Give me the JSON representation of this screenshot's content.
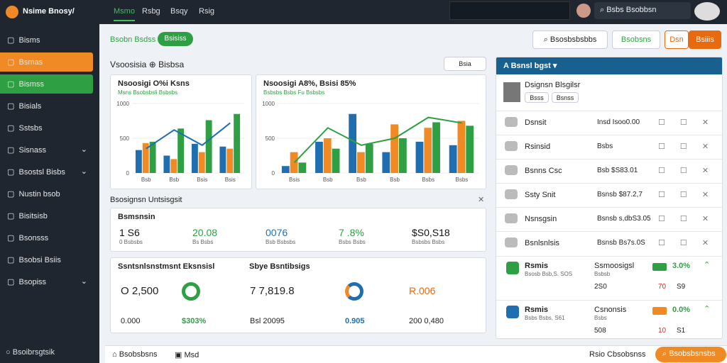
{
  "sidebar": {
    "brand": "Nsime Bnosy/",
    "items": [
      "Bisms",
      "Bsmas",
      "Bismss",
      "Bisials",
      "Sstsbs",
      "Sisnass",
      "Bsostsl Bisbs",
      "Nustin bsob",
      "Bisitsisb",
      "Bsonsss",
      "Bsobsi Bsiis",
      "Bsopiss"
    ],
    "footer": "Bsoibrsgtsik"
  },
  "topnav": {
    "tabs": [
      "Msmo",
      "Rsbg",
      "Bsqy",
      "Rsig"
    ],
    "search": "Bsbs Bsobbsn"
  },
  "toolbar": {
    "breadcrumb": "Bsobn Bsdss",
    "tag": "Bsisiss",
    "search": "Bsosbsbsbbs",
    "buttons": [
      "Bsobsns",
      "Dsn",
      "Bsiiis"
    ]
  },
  "page_title": "Vsoosisia",
  "page_subtitle": "Bisbsa",
  "filter": "Bsia",
  "charts": [
    {
      "title": "Nsoosigi O%i Ksns",
      "subtitle": "Msns Bsobsbsli Bsbsbs",
      "categories": [
        "Bsb",
        "Bsb",
        "Bsis",
        "Bsis"
      ],
      "ylim": [
        0,
        1000
      ],
      "yticks": [
        0,
        500,
        1000
      ],
      "series": [
        {
          "color": "#1f6fb0",
          "values": [
            330,
            250,
            420,
            380
          ]
        },
        {
          "color": "#f08a24",
          "values": [
            430,
            200,
            300,
            350
          ]
        },
        {
          "color": "#2ea043",
          "values": [
            450,
            640,
            760,
            850
          ]
        }
      ],
      "line": {
        "color": "#1f6fb0",
        "values": [
          350,
          620,
          400,
          720
        ]
      }
    },
    {
      "title": "Nsoosigi A8%, Bsisi 85%",
      "subtitle": "Bsbsbs Bsbs Fu Bsbsbs",
      "categories": [
        "Bsis",
        "Bsb",
        "Bsb",
        "Bsb",
        "Bsbs",
        "Bsbs"
      ],
      "ylim": [
        0,
        1000
      ],
      "yticks": [
        0,
        500,
        1000
      ],
      "series": [
        {
          "color": "#1f6fb0",
          "values": [
            100,
            450,
            850,
            300,
            450,
            400
          ]
        },
        {
          "color": "#f08a24",
          "values": [
            300,
            500,
            300,
            700,
            650,
            750
          ]
        },
        {
          "color": "#2ea043",
          "values": [
            150,
            350,
            420,
            500,
            730,
            680
          ]
        }
      ],
      "line": {
        "color": "#2ea043",
        "values": [
          150,
          650,
          400,
          500,
          800,
          720
        ]
      }
    }
  ],
  "section_title": "Bsosignsn Untsisgsit",
  "summary": {
    "title": "Bsmsnsin",
    "stats": [
      {
        "value": "1 S6",
        "label": "0 Bsbsbs"
      },
      {
        "value": "20.08",
        "label": "Bs Bsbs"
      },
      {
        "value": "0076",
        "label": "Bsb Bsbsbs"
      },
      {
        "value": "7 .8%",
        "label": "Bsbs Bsbs"
      },
      {
        "value": "$S0,S18",
        "label": "Bsbsbs Bsbs"
      }
    ]
  },
  "detail": {
    "left_title": "Ssntsnlsnstmsnt Eksnsisl",
    "right_title": "Sbye Bsntibsigs",
    "row1": [
      "Ο 2,500",
      "7 7,819.8",
      "R.006"
    ],
    "row2": [
      "0.000",
      "$303%",
      "Bsl 20095",
      "0.905",
      "200 0,480"
    ]
  },
  "panel": {
    "title": "A Bsnsl bgst",
    "profile": {
      "name": "Dsignsn Blsgilsr",
      "tags": [
        "Bsss",
        "Bsnss"
      ]
    },
    "items": [
      {
        "name": "Dsnsit",
        "value": "Insd Isoo0.00"
      },
      {
        "name": "Rsinsid",
        "value": "Bsbs"
      },
      {
        "name": "Bsnns Csc",
        "value": "Bsb $S83.01"
      },
      {
        "name": "Ssty Snit",
        "value": "Bsnsb $87.2,7"
      },
      {
        "name": "Nsnsgsin",
        "value": "Bsnsb s,dbS3.05"
      },
      {
        "name": "Bsnlsnlsis",
        "value": "Bsnsb Bs7s.0S"
      }
    ],
    "cards": [
      {
        "name": "Rsmis",
        "sub": "Bsosb Bsb,S. SOS",
        "right": "Ssmoosigsl",
        "right_sub": "Bsbsb",
        "pct": "3.0%",
        "nums": [
          "2S0",
          "70",
          "S9"
        ]
      },
      {
        "name": "Rsmis",
        "sub": "Bsbs Bsbs, S61",
        "right": "Csnonsis",
        "right_sub": "Bsbs",
        "pct": "0.0%",
        "nums": [
          "508",
          "10",
          "S1"
        ]
      }
    ]
  },
  "bottom": {
    "left": "Bsobsbsns",
    "tab": "Msd",
    "right": "Rsio Cbsobsnss",
    "action": "Bsobsbsnsbs"
  }
}
